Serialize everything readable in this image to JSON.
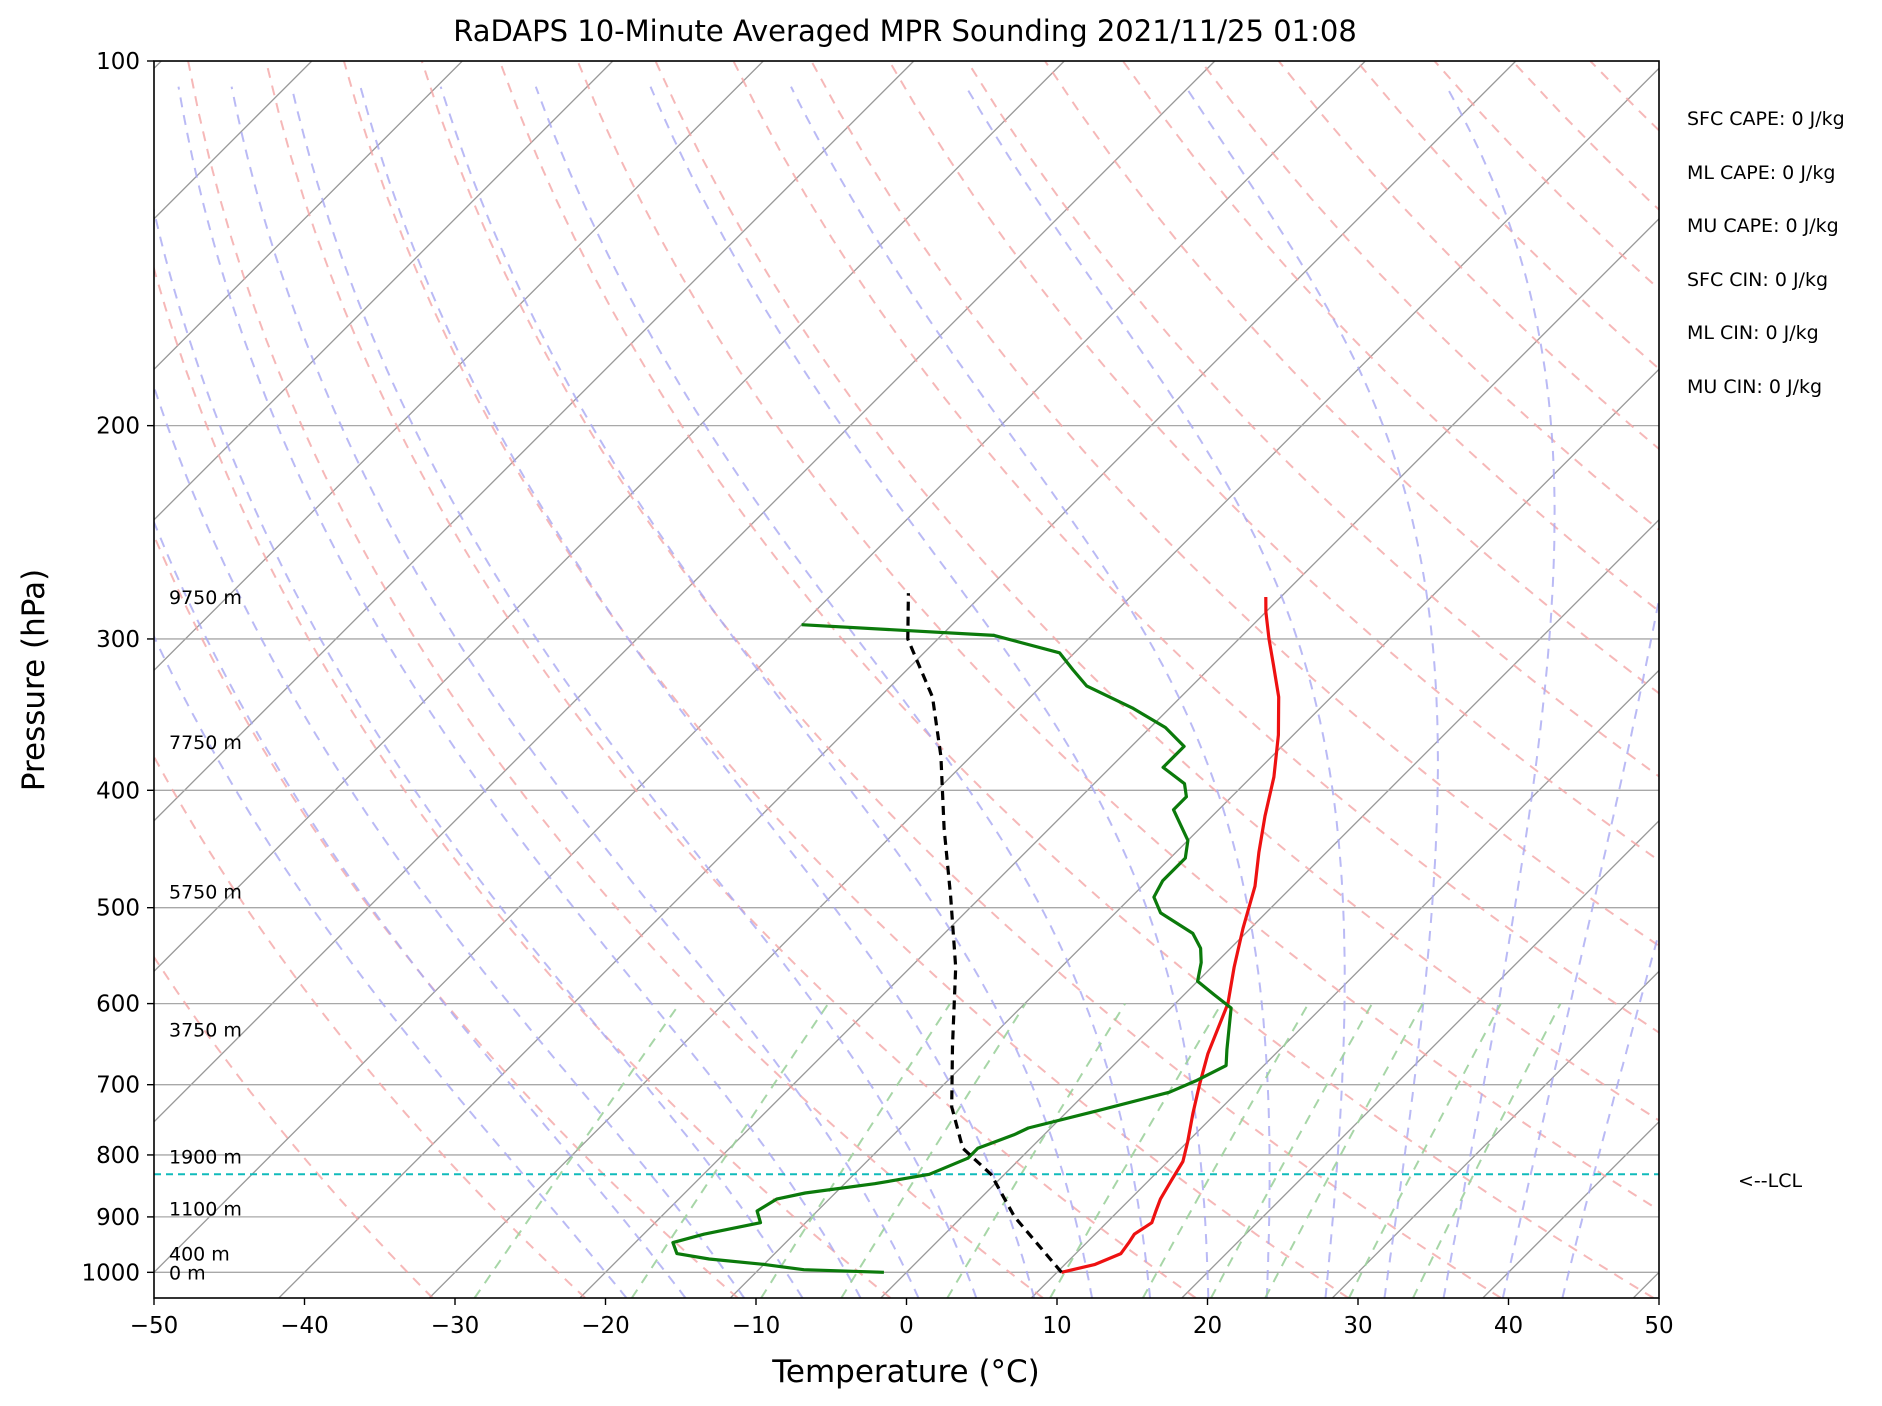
{
  "chart_data": {
    "type": "line",
    "title": "RaDAPS 10-Minute Averaged MPR Sounding 2021/11/25 01:08",
    "xlabel": "Temperature (°C)",
    "ylabel": "Pressure (hPa)",
    "xlim": [
      -50,
      50
    ],
    "ylim": [
      1050,
      100
    ],
    "y_scale": "log",
    "x_ticks": [
      "−50",
      "−40",
      "−30",
      "−20",
      "−10",
      "0",
      "10",
      "20",
      "30",
      "40",
      "50"
    ],
    "x_tick_values": [
      -50,
      -40,
      -30,
      -20,
      -10,
      0,
      10,
      20,
      30,
      40,
      50
    ],
    "y_ticks": [
      1000,
      900,
      800,
      700,
      600,
      500,
      400,
      300,
      200,
      100
    ],
    "grid": "horizontal isobars",
    "series": [
      {
        "color": "#ee1111",
        "points": [
          [
            10.3,
            1000
          ],
          [
            12.0,
            985
          ],
          [
            13.0,
            965
          ],
          [
            12.8,
            945
          ],
          [
            12.6,
            930
          ],
          [
            13.0,
            910
          ],
          [
            12.5,
            890
          ],
          [
            12.0,
            870
          ],
          [
            11.5,
            840
          ],
          [
            11.0,
            810
          ],
          [
            10.0,
            780
          ],
          [
            8.5,
            740
          ],
          [
            7.0,
            700
          ],
          [
            5.5,
            660
          ],
          [
            3.5,
            600
          ],
          [
            1.5,
            560
          ],
          [
            -0.5,
            520
          ],
          [
            -2.5,
            480
          ],
          [
            -4.5,
            450
          ],
          [
            -6.5,
            420
          ],
          [
            -8.5,
            390
          ],
          [
            -11.0,
            360
          ],
          [
            -13.5,
            335
          ],
          [
            -16.0,
            315
          ],
          [
            -18.0,
            300
          ],
          [
            -20.0,
            285
          ],
          [
            -21.0,
            277
          ]
        ]
      },
      {
        "color": "#0b7a0b",
        "points": [
          [
            -1.5,
            1000
          ],
          [
            -7.0,
            995
          ],
          [
            -10.0,
            985
          ],
          [
            -14.0,
            975
          ],
          [
            -16.5,
            965
          ],
          [
            -17.0,
            955
          ],
          [
            -17.5,
            945
          ],
          [
            -16.0,
            930
          ],
          [
            -13.0,
            910
          ],
          [
            -14.0,
            890
          ],
          [
            -13.5,
            870
          ],
          [
            -12.0,
            860
          ],
          [
            -8.0,
            845
          ],
          [
            -5.0,
            830
          ],
          [
            -3.5,
            805
          ],
          [
            -3.5,
            790
          ],
          [
            -2.0,
            770
          ],
          [
            -1.5,
            760
          ],
          [
            2.0,
            735
          ],
          [
            5.5,
            710
          ],
          [
            6.5,
            695
          ],
          [
            7.5,
            675
          ],
          [
            6.5,
            655
          ],
          [
            4.0,
            605
          ],
          [
            2.0,
            590
          ],
          [
            0.0,
            575
          ],
          [
            -1.0,
            555
          ],
          [
            -2.0,
            540
          ],
          [
            -3.5,
            525
          ],
          [
            -7.0,
            505
          ],
          [
            -8.5,
            490
          ],
          [
            -9.0,
            475
          ],
          [
            -9.0,
            455
          ],
          [
            -10.0,
            440
          ],
          [
            -13.0,
            415
          ],
          [
            -13.0,
            405
          ],
          [
            -14.0,
            395
          ],
          [
            -16.5,
            383
          ],
          [
            -16.5,
            368
          ],
          [
            -19.0,
            355
          ],
          [
            -22.5,
            342
          ],
          [
            -27.0,
            328
          ],
          [
            -29.0,
            318
          ],
          [
            -31.0,
            308
          ],
          [
            -36.5,
            298
          ],
          [
            -50.0,
            292
          ]
        ]
      },
      {
        "color": "#000000",
        "style": "dashed",
        "points": [
          [
            10.3,
            1000
          ],
          [
            3.5,
            900
          ],
          [
            -0.9,
            830
          ],
          [
            -4.5,
            790
          ],
          [
            -8.0,
            730
          ],
          [
            -12.0,
            650
          ],
          [
            -17.0,
            560
          ],
          [
            -22.0,
            490
          ],
          [
            -27.0,
            430
          ],
          [
            -32.0,
            375
          ],
          [
            -36.5,
            335
          ],
          [
            -42.0,
            300
          ],
          [
            -45.0,
            275
          ]
        ]
      }
    ],
    "height_labels": [
      {
        "text": "9750 m",
        "p": 277
      },
      {
        "text": "7750 m",
        "p": 365
      },
      {
        "text": "5750 m",
        "p": 485
      },
      {
        "text": "3750 m",
        "p": 630
      },
      {
        "text": "1900 m",
        "p": 802
      },
      {
        "text": "1100 m",
        "p": 886
      },
      {
        "text": "400 m",
        "p": 965
      },
      {
        "text": "0 m",
        "p": 1000
      }
    ],
    "lcl": {
      "p": 830,
      "color": "#11bbbb",
      "label": "<--LCL"
    },
    "stats": [
      "SFC CAPE: 0 J/kg",
      "ML CAPE: 0 J/kg",
      "MU CAPE: 0 J/kg",
      "SFC CIN: 0 J/kg",
      "ML CIN: 0 J/kg",
      "MU CIN: 0 J/kg"
    ],
    "background_lines": {
      "dry_adiabats_color": "#f4a6a6",
      "moist_adiabats_color": "#a9a9f2",
      "mixing_ratio_color": "#9dd19d",
      "isotherms_color": "#999999"
    }
  }
}
